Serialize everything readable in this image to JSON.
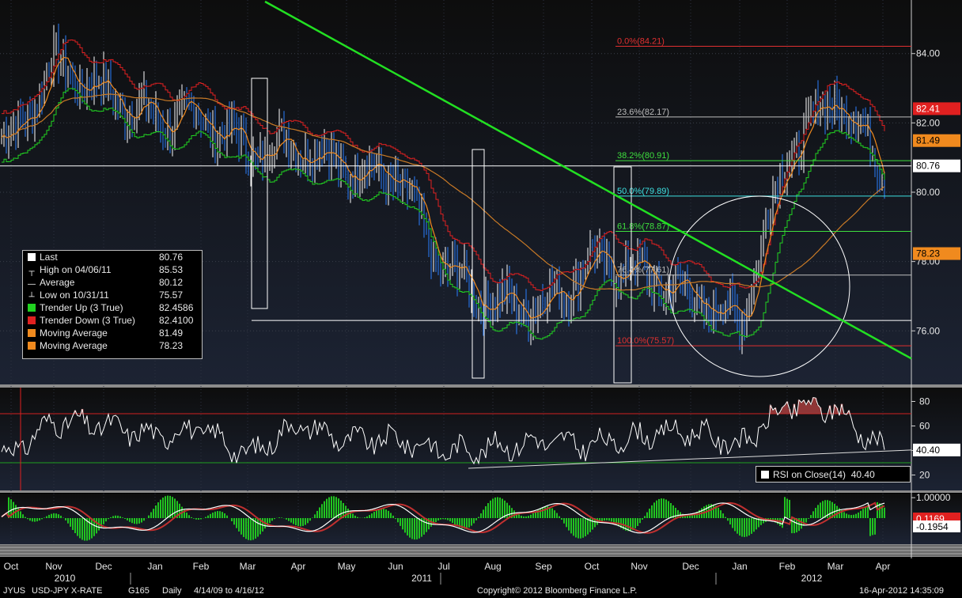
{
  "chart_data": {
    "type": "line",
    "title": "USD-JPY X-RATE",
    "ticker": "JYUS",
    "instrument": "USD-JPY X-RATE",
    "security_id": "G165",
    "period": "Daily",
    "date_range": "4/14/09 to 4/16/12",
    "copyright": "Copyright© 2012 Bloomberg Finance L.P.",
    "timestamp": "16-Apr-2012 14:35:09",
    "x_month_labels": [
      "Oct",
      "Nov",
      "Dec",
      "Jan",
      "Feb",
      "Mar",
      "Apr",
      "May",
      "Jun",
      "Jul",
      "Aug",
      "Sep",
      "Oct",
      "Nov",
      "Dec",
      "Jan",
      "Feb",
      "Mar",
      "Apr"
    ],
    "x_year_labels": [
      "2010",
      "2011",
      "2012"
    ],
    "price_panel": {
      "yticks": [
        "84.00",
        "82.00",
        "80.00",
        "78.00",
        "76.00"
      ],
      "ylim": [
        74.5,
        85.5
      ],
      "close_by_month": [
        {
          "month": "Oct 2010",
          "close": 81.5
        },
        {
          "month": "Nov 2010",
          "close": 83.7
        },
        {
          "month": "Dec 2010",
          "close": 82.9
        },
        {
          "month": "Jan 2011",
          "close": 82.1
        },
        {
          "month": "Feb 2011",
          "close": 82.2
        },
        {
          "month": "Mar 2011",
          "close": 81.2
        },
        {
          "month": "Apr 2011",
          "close": 81.4
        },
        {
          "month": "May 2011",
          "close": 80.7
        },
        {
          "month": "Jun 2011",
          "close": 80.5
        },
        {
          "month": "Jul 2011",
          "close": 77.8
        },
        {
          "month": "Aug 2011",
          "close": 76.8
        },
        {
          "month": "Sep 2011",
          "close": 76.7
        },
        {
          "month": "Oct 2011",
          "close": 78.0
        },
        {
          "month": "Nov 2011",
          "close": 77.7
        },
        {
          "month": "Dec 2011",
          "close": 77.0
        },
        {
          "month": "Jan 2012",
          "close": 76.3
        },
        {
          "month": "Feb 2012",
          "close": 81.1
        },
        {
          "month": "Mar 2012",
          "close": 82.8
        },
        {
          "month": "Apr 2012",
          "close": 80.76
        }
      ],
      "fibonacci": [
        {
          "label": "0.0%(84.21)",
          "value": 84.21,
          "color": "#e03030"
        },
        {
          "label": "23.6%(82.17)",
          "value": 82.17,
          "color": "#bdbdbd"
        },
        {
          "label": "38.2%(80.91)",
          "value": 80.91,
          "color": "#3ee03e"
        },
        {
          "label": "50.0%(79.89)",
          "value": 79.89,
          "color": "#3ce0e0"
        },
        {
          "label": "61.8%(78.87)",
          "value": 78.87,
          "color": "#3ee03e"
        },
        {
          "label": "76.4%(77.61)",
          "value": 77.61,
          "color": "#bdbdbd"
        },
        {
          "label": "100.0%(75.57)",
          "value": 75.57,
          "color": "#e03030"
        }
      ],
      "right_tags": [
        {
          "text": "82.41",
          "value": 82.41,
          "bg": "#e02020",
          "fg": "#ffffff"
        },
        {
          "text": "81.49",
          "value": 81.49,
          "bg": "#f08a1e",
          "fg": "#000000"
        },
        {
          "text": "80.76",
          "value": 80.76,
          "bg": "#ffffff",
          "fg": "#000000"
        },
        {
          "text": "78.23",
          "value": 78.23,
          "bg": "#f08a1e",
          "fg": "#000000"
        }
      ],
      "trendline_start_value": 85.5,
      "trendline_end_value": 75.2
    },
    "legend": [
      {
        "label": "Last",
        "value": "80.76",
        "symbol": "square",
        "color": "#ffffff"
      },
      {
        "label": "High on 04/06/11",
        "value": "85.53",
        "symbol": "high",
        "color": "#ffffff"
      },
      {
        "label": "Average",
        "value": "80.12",
        "symbol": "avg",
        "color": "#ffffff"
      },
      {
        "label": "Low on 10/31/11",
        "value": "75.57",
        "symbol": "low",
        "color": "#ffffff"
      },
      {
        "label": "Trender Up (3 True)",
        "value": "82.4586",
        "symbol": "square",
        "color": "#21d321"
      },
      {
        "label": "Trender Down (3 True)",
        "value": "82.4100",
        "symbol": "square",
        "color": "#e02020"
      },
      {
        "label": "Moving Average",
        "value": "81.49",
        "symbol": "square",
        "color": "#f08a1e"
      },
      {
        "label": "Moving Average",
        "value": "78.23",
        "symbol": "square",
        "color": "#f08a1e"
      }
    ],
    "rsi_panel": {
      "label": "RSI on Close(14)",
      "last_value": "40.40",
      "yticks": [
        "80",
        "60",
        "40",
        "20"
      ],
      "ylim": [
        10,
        90
      ],
      "levels": [
        70,
        30
      ],
      "rsi_by_month": [
        {
          "month": "Oct 2010",
          "value": 38
        },
        {
          "month": "Nov 2010",
          "value": 64
        },
        {
          "month": "Dec 2010",
          "value": 60
        },
        {
          "month": "Jan 2011",
          "value": 52
        },
        {
          "month": "Feb 2011",
          "value": 58
        },
        {
          "month": "Mar 2011",
          "value": 36
        },
        {
          "month": "Apr 2011",
          "value": 62
        },
        {
          "month": "May 2011",
          "value": 48
        },
        {
          "month": "Jun 2011",
          "value": 49
        },
        {
          "month": "Jul 2011",
          "value": 40
        },
        {
          "month": "Aug 2011",
          "value": 42
        },
        {
          "month": "Sep 2011",
          "value": 48
        },
        {
          "month": "Oct 2011",
          "value": 44
        },
        {
          "month": "Nov 2011",
          "value": 52
        },
        {
          "month": "Dec 2011",
          "value": 56
        },
        {
          "month": "Jan 2012",
          "value": 44
        },
        {
          "month": "Feb 2012",
          "value": 76
        },
        {
          "month": "Mar 2012",
          "value": 74
        },
        {
          "month": "Apr 2012",
          "value": 40.4
        }
      ]
    },
    "oscillator_panel": {
      "yticks": [
        "1.00000"
      ],
      "tags": [
        {
          "text": "0.1169",
          "bg": "#e02020",
          "fg": "#ffffff"
        },
        {
          "text": "-0.1954",
          "bg": "#ffffff",
          "fg": "#000000"
        }
      ],
      "ylim": [
        -1.2,
        1.2
      ]
    }
  }
}
